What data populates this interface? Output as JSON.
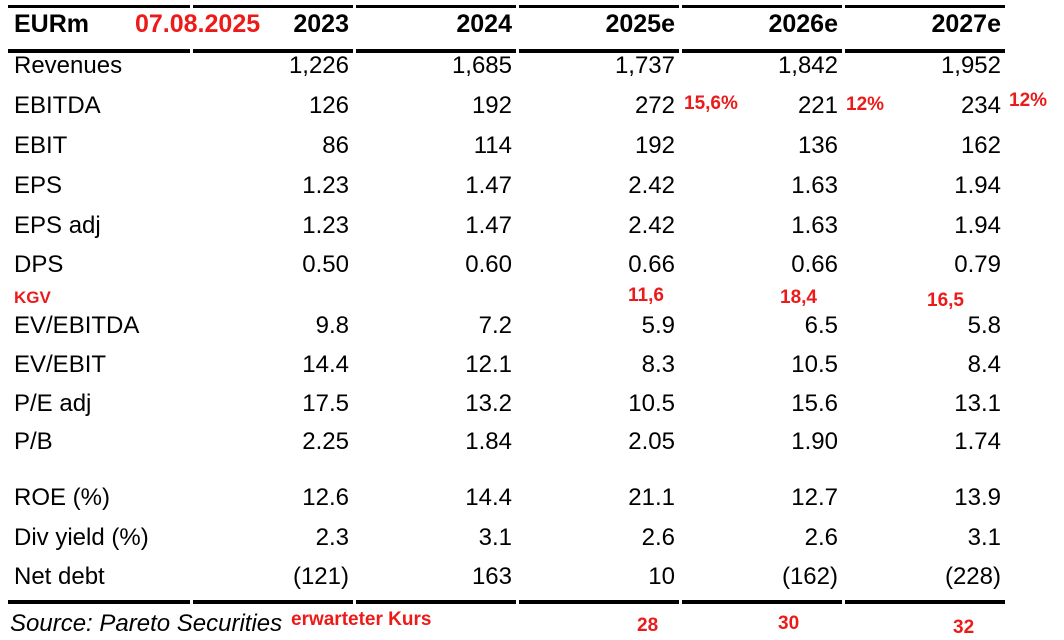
{
  "colors": {
    "accent_red": "#ed1a1a",
    "text": "#000000",
    "background": "#ffffff"
  },
  "table": {
    "unit_label": "EURm",
    "columns": [
      "2023",
      "2024",
      "2025e",
      "2026e",
      "2027e"
    ],
    "rows": [
      {
        "label": "Revenues",
        "values": [
          "1,226",
          "1,685",
          "1,737",
          "1,842",
          "1,952"
        ]
      },
      {
        "label": "EBITDA",
        "values": [
          "126",
          "192",
          "272",
          "221",
          "234"
        ]
      },
      {
        "label": "EBIT",
        "values": [
          "86",
          "114",
          "192",
          "136",
          "162"
        ]
      },
      {
        "label": "EPS",
        "values": [
          "1.23",
          "1.47",
          "2.42",
          "1.63",
          "1.94"
        ]
      },
      {
        "label": "EPS adj",
        "values": [
          "1.23",
          "1.47",
          "2.42",
          "1.63",
          "1.94"
        ]
      },
      {
        "label": "DPS",
        "values": [
          "0.50",
          "0.60",
          "0.66",
          "0.66",
          "0.79"
        ]
      },
      {
        "label": "EV/EBITDA",
        "values": [
          "9.8",
          "7.2",
          "5.9",
          "6.5",
          "5.8"
        ]
      },
      {
        "label": "EV/EBIT",
        "values": [
          "14.4",
          "12.1",
          "8.3",
          "10.5",
          "8.4"
        ]
      },
      {
        "label": "P/E adj",
        "values": [
          "17.5",
          "13.2",
          "10.5",
          "15.6",
          "13.1"
        ]
      },
      {
        "label": "P/B",
        "values": [
          "2.25",
          "1.84",
          "2.05",
          "1.90",
          "1.74"
        ]
      },
      {
        "label": "ROE (%)",
        "values": [
          "12.6",
          "14.4",
          "21.1",
          "12.7",
          "13.9"
        ]
      },
      {
        "label": "Div yield (%)",
        "values": [
          "2.3",
          "3.1",
          "2.6",
          "2.6",
          "3.1"
        ]
      },
      {
        "label": "Net debt",
        "values": [
          "(121)",
          "163",
          "10",
          "(162)",
          "(228)"
        ]
      }
    ]
  },
  "annotations": {
    "date": "07.08.2025",
    "ebitda_growth": [
      "15,6%",
      "12%",
      "12%"
    ],
    "kgv_label": "KGV",
    "kgv_values": [
      "11,6",
      "18,4",
      "16,5"
    ],
    "expected_price_label": "erwarteter Kurs",
    "expected_prices": [
      "28",
      "30",
      "32"
    ]
  },
  "footer": {
    "source": "Source: Pareto Securities"
  }
}
